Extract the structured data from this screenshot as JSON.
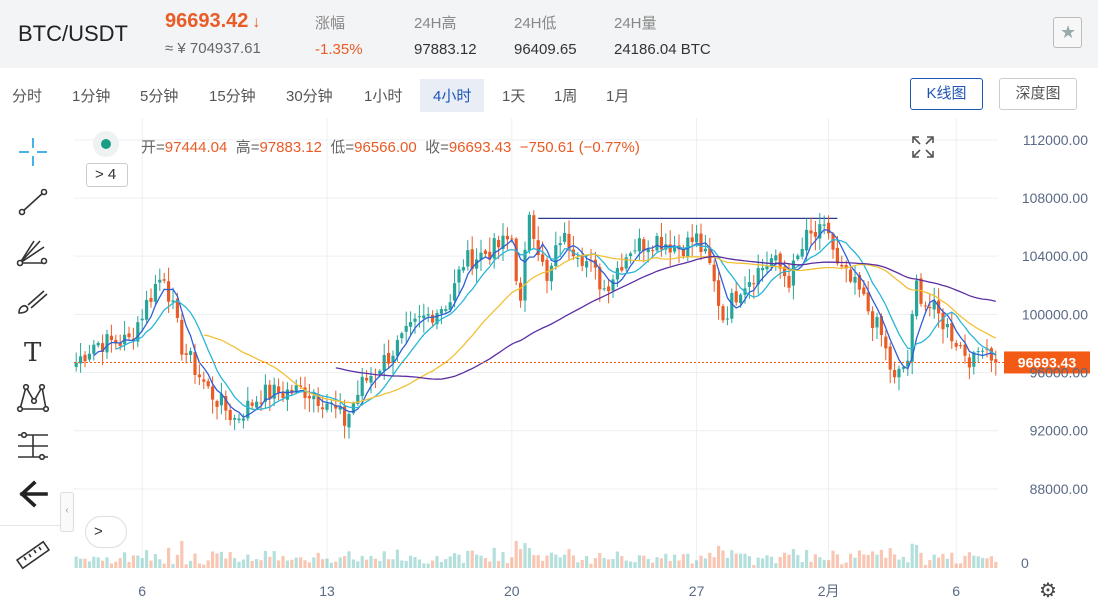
{
  "header": {
    "pair": "BTC/USDT",
    "price": "96693.42",
    "price_arrow": "↓",
    "cny_price": "≈ ¥ 704937.61",
    "stats": [
      {
        "label": "涨幅",
        "value": "-1.35%",
        "negative": true
      },
      {
        "label": "24H高",
        "value": "97883.12",
        "negative": false
      },
      {
        "label": "24H低",
        "value": "96409.65",
        "negative": false
      },
      {
        "label": "24H量",
        "value": "24186.04 BTC",
        "negative": false
      }
    ],
    "favorite_icon": "star-icon"
  },
  "timeframes": [
    "分时",
    "1分钟",
    "5分钟",
    "15分钟",
    "30分钟",
    "1小时",
    "4小时",
    "1天",
    "1周",
    "1月"
  ],
  "active_timeframe": "4小时",
  "view_buttons": {
    "kline": "K线图",
    "depth": "深度图"
  },
  "toolbar_icons": [
    "crosshair-icon",
    "trend-line-icon",
    "fib-fan-icon",
    "brush-icon",
    "text-icon",
    "pattern-icon",
    "measure-levels-icon",
    "back-arrow-icon",
    "ruler-icon"
  ],
  "ohlc": {
    "open_label": "开=",
    "open": "97444.04",
    "high_label": "高=",
    "high": "97883.12",
    "low_label": "低=",
    "low": "96566.00",
    "close_label": "收=",
    "close": "96693.43",
    "change": "−750.61",
    "change_pct": "(−0.77%)"
  },
  "indicator_toggle": "> 4",
  "volume_toggle": ">",
  "collapse_label": "‹",
  "colors": {
    "up": "#26a69a",
    "down": "#ea5b25",
    "ma_fast": "#2e5fd9",
    "ma_mid": "#29b6d6",
    "ma_slow": "#f2c037",
    "ma_long": "#5b2fa3",
    "price_tag": "#f25a16"
  },
  "chart_data": {
    "type": "candlestick",
    "y_axis_ticks": [
      "112000.00",
      "108000.00",
      "104000.00",
      "100000.00",
      "96000.00",
      "92000.00",
      "88000.00"
    ],
    "ylim": [
      86000,
      113500
    ],
    "x_axis_labels": [
      {
        "label": "6",
        "bar": 15
      },
      {
        "label": "13",
        "bar": 57
      },
      {
        "label": "20",
        "bar": 99
      },
      {
        "label": "27",
        "bar": 141
      },
      {
        "label": "2月",
        "bar": 171
      },
      {
        "label": "6",
        "bar": 200
      }
    ],
    "current_price_label": "96693.43",
    "current_price": 96693.43,
    "volume_axis_label": "0",
    "horizontal_line": {
      "from_bar": 105,
      "to_bar": 173,
      "price": 106600
    },
    "candles": {
      "count": 210,
      "anchors": [
        [
          0,
          96700
        ],
        [
          4,
          98000
        ],
        [
          12,
          98200
        ],
        [
          18,
          102000
        ],
        [
          20,
          102800
        ],
        [
          24,
          97800
        ],
        [
          30,
          94800
        ],
        [
          36,
          92800
        ],
        [
          42,
          94500
        ],
        [
          52,
          94800
        ],
        [
          57,
          94000
        ],
        [
          61,
          92600
        ],
        [
          65,
          95200
        ],
        [
          72,
          97500
        ],
        [
          78,
          99500
        ],
        [
          85,
          101000
        ],
        [
          88,
          103600
        ],
        [
          95,
          104500
        ],
        [
          99,
          105200
        ],
        [
          101,
          100500
        ],
        [
          103,
          107200
        ],
        [
          107,
          102000
        ],
        [
          110,
          105300
        ],
        [
          114,
          104500
        ],
        [
          120,
          101800
        ],
        [
          126,
          104600
        ],
        [
          132,
          105200
        ],
        [
          137,
          104600
        ],
        [
          141,
          105200
        ],
        [
          144,
          103200
        ],
        [
          147,
          99800
        ],
        [
          151,
          102000
        ],
        [
          158,
          103800
        ],
        [
          162,
          102400
        ],
        [
          166,
          105200
        ],
        [
          171,
          105700
        ],
        [
          173,
          103200
        ],
        [
          178,
          101500
        ],
        [
          183,
          98500
        ],
        [
          186,
          95300
        ],
        [
          189,
          96900
        ],
        [
          191,
          102000
        ],
        [
          193,
          100800
        ],
        [
          197,
          99500
        ],
        [
          201,
          97800
        ],
        [
          204,
          96700
        ],
        [
          206,
          98200
        ],
        [
          208,
          97300
        ],
        [
          209,
          96693
        ]
      ]
    }
  }
}
